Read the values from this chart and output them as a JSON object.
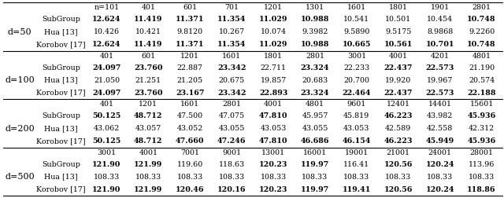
{
  "sections": [
    {
      "d_label": "d=50",
      "col_headers": [
        "n=101",
        "401",
        "601",
        "701",
        "1201",
        "1301",
        "1601",
        "1801",
        "1901",
        "2801"
      ],
      "rows": [
        {
          "name": "SubGroup",
          "values": [
            "12.624",
            "11.419",
            "11.371",
            "11.354",
            "11.029",
            "10.988",
            "10.541",
            "10.501",
            "10.454",
            "10.748"
          ],
          "bold": [
            true,
            true,
            true,
            true,
            true,
            true,
            false,
            false,
            false,
            true
          ]
        },
        {
          "name": "Hua [13]",
          "values": [
            "10.426",
            "10.421",
            "9.8120",
            "10.267",
            "10.074",
            "9.3982",
            "9.5890",
            "9.5175",
            "8.9868",
            "9.2260"
          ],
          "bold": [
            false,
            false,
            false,
            false,
            false,
            false,
            false,
            false,
            false,
            false
          ]
        },
        {
          "name": "Korobov [17]",
          "values": [
            "12.624",
            "11.419",
            "11.371",
            "11.354",
            "11.029",
            "10.988",
            "10.665",
            "10.561",
            "10.701",
            "10.748"
          ],
          "bold": [
            true,
            true,
            true,
            true,
            true,
            true,
            true,
            true,
            true,
            true
          ]
        }
      ]
    },
    {
      "d_label": "d=100",
      "col_headers": [
        "401",
        "601",
        "1201",
        "1601",
        "1801",
        "2801",
        "3001",
        "4001",
        "4201",
        "4801"
      ],
      "rows": [
        {
          "name": "SubGroup",
          "values": [
            "24.097",
            "23.760",
            "22.887",
            "23.342",
            "22.711",
            "23.324",
            "22.233",
            "22.437",
            "22.573",
            "21.190"
          ],
          "bold": [
            true,
            true,
            false,
            true,
            false,
            true,
            false,
            true,
            true,
            false
          ]
        },
        {
          "name": "Hua [13]",
          "values": [
            "21.050",
            "21.251",
            "21.205",
            "20.675",
            "19.857",
            "20.683",
            "20.700",
            "19.920",
            "19.967",
            "20.574"
          ],
          "bold": [
            false,
            false,
            false,
            false,
            false,
            false,
            false,
            false,
            false,
            false
          ]
        },
        {
          "name": "Korobov [17]",
          "values": [
            "24.097",
            "23.760",
            "23.167",
            "23.342",
            "22.893",
            "23.324",
            "22.464",
            "22.437",
            "22.573",
            "22.188"
          ],
          "bold": [
            true,
            true,
            true,
            true,
            true,
            true,
            true,
            true,
            true,
            true
          ]
        }
      ]
    },
    {
      "d_label": "d=200",
      "col_headers": [
        "401",
        "1201",
        "1601",
        "2801",
        "4001",
        "4801",
        "9601",
        "12401",
        "14401",
        "15601"
      ],
      "rows": [
        {
          "name": "SubGroup",
          "values": [
            "50.125",
            "48.712",
            "47.500",
            "47.075",
            "47.810",
            "45.957",
            "45.819",
            "46.223",
            "43.982",
            "45.936"
          ],
          "bold": [
            true,
            true,
            false,
            false,
            true,
            false,
            false,
            true,
            false,
            true
          ]
        },
        {
          "name": "Hua [13]",
          "values": [
            "43.062",
            "43.057",
            "43.052",
            "43.055",
            "43.053",
            "43.055",
            "43.053",
            "42.589",
            "42.558",
            "42.312"
          ],
          "bold": [
            false,
            false,
            false,
            false,
            false,
            false,
            false,
            false,
            false,
            false
          ]
        },
        {
          "name": "Korobov [17]",
          "values": [
            "50.125",
            "48.712",
            "47.660",
            "47.246",
            "47.810",
            "46.686",
            "46.154",
            "46.223",
            "45.949",
            "45.936"
          ],
          "bold": [
            true,
            true,
            true,
            true,
            true,
            true,
            true,
            true,
            true,
            true
          ]
        }
      ]
    },
    {
      "d_label": "d=500",
      "col_headers": [
        "3001",
        "4001",
        "7001",
        "9001",
        "13001",
        "16001",
        "19001",
        "21001",
        "24001",
        "28001"
      ],
      "rows": [
        {
          "name": "SubGroup",
          "values": [
            "121.90",
            "121.99",
            "119.60",
            "118.63",
            "120.23",
            "119.97",
            "116.41",
            "120.56",
            "120.24",
            "113.96"
          ],
          "bold": [
            true,
            true,
            false,
            false,
            true,
            true,
            false,
            true,
            true,
            false
          ]
        },
        {
          "name": "Hua [13]",
          "values": [
            "108.33",
            "108.33",
            "108.33",
            "108.33",
            "108.33",
            "108.33",
            "108.33",
            "108.33",
            "108.33",
            "108.33"
          ],
          "bold": [
            false,
            false,
            false,
            false,
            false,
            false,
            false,
            false,
            false,
            false
          ]
        },
        {
          "name": "Korobov [17]",
          "values": [
            "121.90",
            "121.99",
            "120.46",
            "120.16",
            "120.23",
            "119.97",
            "119.41",
            "120.56",
            "120.24",
            "118.86"
          ],
          "bold": [
            true,
            true,
            true,
            true,
            true,
            true,
            true,
            true,
            true,
            true
          ]
        }
      ]
    }
  ],
  "background_color": "#ffffff",
  "font_size": 6.8,
  "header_font_size": 6.8,
  "d_label_font_size": 8.0
}
